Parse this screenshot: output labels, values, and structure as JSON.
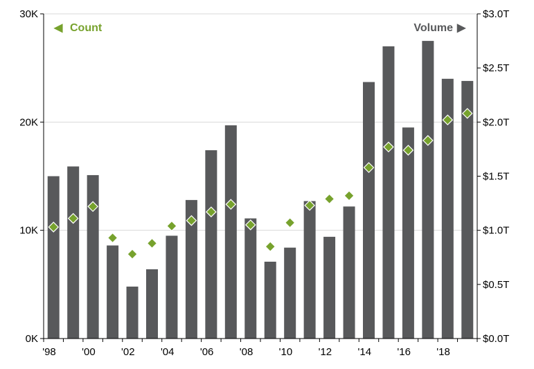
{
  "chart_data": {
    "type": "bar",
    "categories": [
      "1998",
      "1999",
      "2000",
      "2001",
      "2002",
      "2003",
      "2004",
      "2005",
      "2006",
      "2007",
      "2008",
      "2009",
      "2010",
      "2011",
      "2012",
      "2013",
      "2014",
      "2015",
      "2016",
      "2017",
      "2018",
      "2019"
    ],
    "x_tick_labels": [
      "'98",
      "'00",
      "'02",
      "'04",
      "'06",
      "'08",
      "'10",
      "'12",
      "'14",
      "'16",
      "'18"
    ],
    "series": [
      {
        "name": "Volume",
        "type": "bar",
        "axis": "right",
        "color": "#58595b",
        "values": [
          1.5,
          1.59,
          1.51,
          0.86,
          0.48,
          0.64,
          0.95,
          1.28,
          1.74,
          1.97,
          1.11,
          0.71,
          0.84,
          1.27,
          0.94,
          1.22,
          2.37,
          2.7,
          1.95,
          2.75,
          2.4,
          2.38
        ]
      },
      {
        "name": "Count",
        "type": "scatter",
        "axis": "left",
        "color": "#77a22d",
        "marker": "diamond",
        "values": [
          10300,
          11100,
          12200,
          9300,
          7800,
          8800,
          10400,
          10900,
          11700,
          12400,
          10500,
          8500,
          10700,
          12300,
          12900,
          13200,
          15800,
          17700,
          17400,
          18300,
          20200,
          20800
        ]
      }
    ],
    "y_left": {
      "ylim": [
        0,
        30000
      ],
      "ticks": [
        "0K",
        "10K",
        "20K",
        "30K"
      ]
    },
    "y_right": {
      "ylim": [
        0,
        3.0
      ],
      "ticks": [
        "$0.0T",
        "$0.5T",
        "$1.0T",
        "$1.5T",
        "$2.0T",
        "$2.5T",
        "$3.0T"
      ]
    },
    "legend": {
      "left": {
        "label": "Count",
        "arrow": "◀",
        "color": "#77a22d"
      },
      "right": {
        "label": "Volume",
        "arrow": "▶",
        "color": "#58595b"
      }
    },
    "grid": true
  }
}
